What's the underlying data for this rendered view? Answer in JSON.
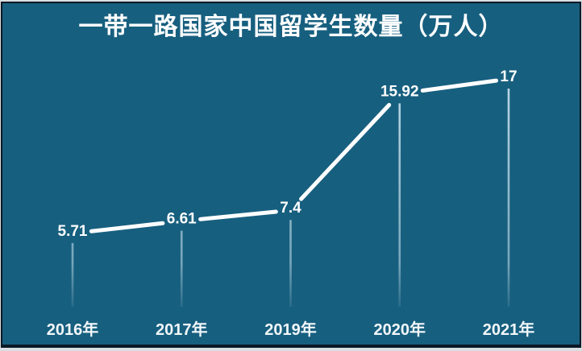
{
  "slide": {
    "background_color": "#175f7f",
    "frame_dark_color": "#0b1824",
    "frame_light_color": "#d9dee3"
  },
  "chart_data": {
    "type": "line",
    "title": "一带一路国家中国留学生数量（万人）",
    "categories": [
      "2016年",
      "2017年",
      "2019年",
      "2020年",
      "2021年"
    ],
    "values": [
      5.71,
      6.61,
      7.4,
      15.92,
      17
    ],
    "value_labels": [
      "5.71",
      "6.61",
      "7.4",
      "15.92",
      "17"
    ],
    "xlabel": "",
    "ylabel": "",
    "ylim": [
      0,
      18
    ],
    "grid": false,
    "legend": false,
    "line_color": "#ffffff",
    "stem_color": "#d8edf6",
    "value_label_color": "#ffffff",
    "tick_label_color": "#f2f7fa",
    "title_color": "#ffffff"
  }
}
